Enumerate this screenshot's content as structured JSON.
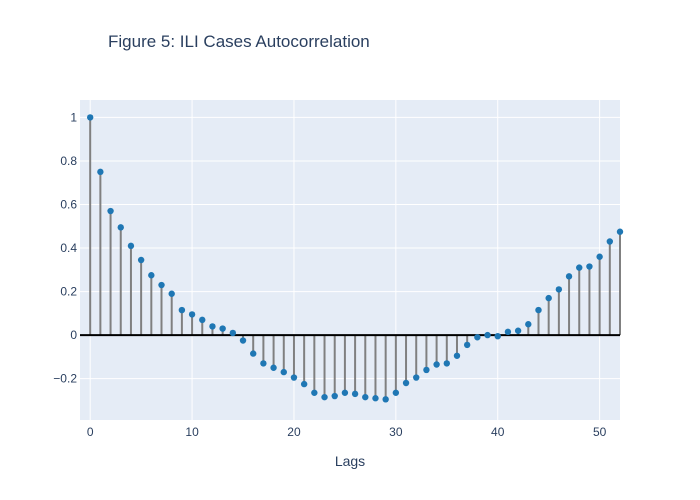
{
  "chart_data": {
    "type": "stem",
    "title": "Figure 5: ILI Cases Autocorrelation",
    "xlabel": "Lags",
    "ylabel": "",
    "xlim": [
      -1,
      52
    ],
    "ylim": [
      -0.39,
      1.08
    ],
    "x_ticks": [
      0,
      10,
      20,
      30,
      40,
      50
    ],
    "y_ticks": [
      -0.2,
      0,
      0.2,
      0.4,
      0.6,
      0.8,
      1
    ],
    "y_tick_labels": [
      "−0.2",
      "0",
      "0.2",
      "0.4",
      "0.6",
      "0.8",
      "1"
    ],
    "grid": true,
    "colors": {
      "plot_bg": "#e5ecf6",
      "grid": "#ffffff",
      "marker": "#1f77b4",
      "stem": "#808080",
      "zero_line": "#000000"
    },
    "lags": [
      0,
      1,
      2,
      3,
      4,
      5,
      6,
      7,
      8,
      9,
      10,
      11,
      12,
      13,
      14,
      15,
      16,
      17,
      18,
      19,
      20,
      21,
      22,
      23,
      24,
      25,
      26,
      27,
      28,
      29,
      30,
      31,
      32,
      33,
      34,
      35,
      36,
      37,
      38,
      39,
      40,
      41,
      42,
      43,
      44,
      45,
      46,
      47,
      48,
      49,
      50,
      51,
      52
    ],
    "values": [
      1.0,
      0.75,
      0.57,
      0.495,
      0.41,
      0.345,
      0.275,
      0.23,
      0.19,
      0.115,
      0.095,
      0.07,
      0.04,
      0.03,
      0.01,
      -0.025,
      -0.085,
      -0.13,
      -0.15,
      -0.17,
      -0.195,
      -0.225,
      -0.265,
      -0.285,
      -0.28,
      -0.265,
      -0.27,
      -0.285,
      -0.29,
      -0.295,
      -0.265,
      -0.22,
      -0.195,
      -0.16,
      -0.135,
      -0.13,
      -0.095,
      -0.045,
      -0.01,
      0.0,
      -0.005,
      0.015,
      0.02,
      0.05,
      0.115,
      0.17,
      0.21,
      0.27,
      0.31,
      0.315,
      0.36,
      0.43,
      0.475
    ]
  }
}
